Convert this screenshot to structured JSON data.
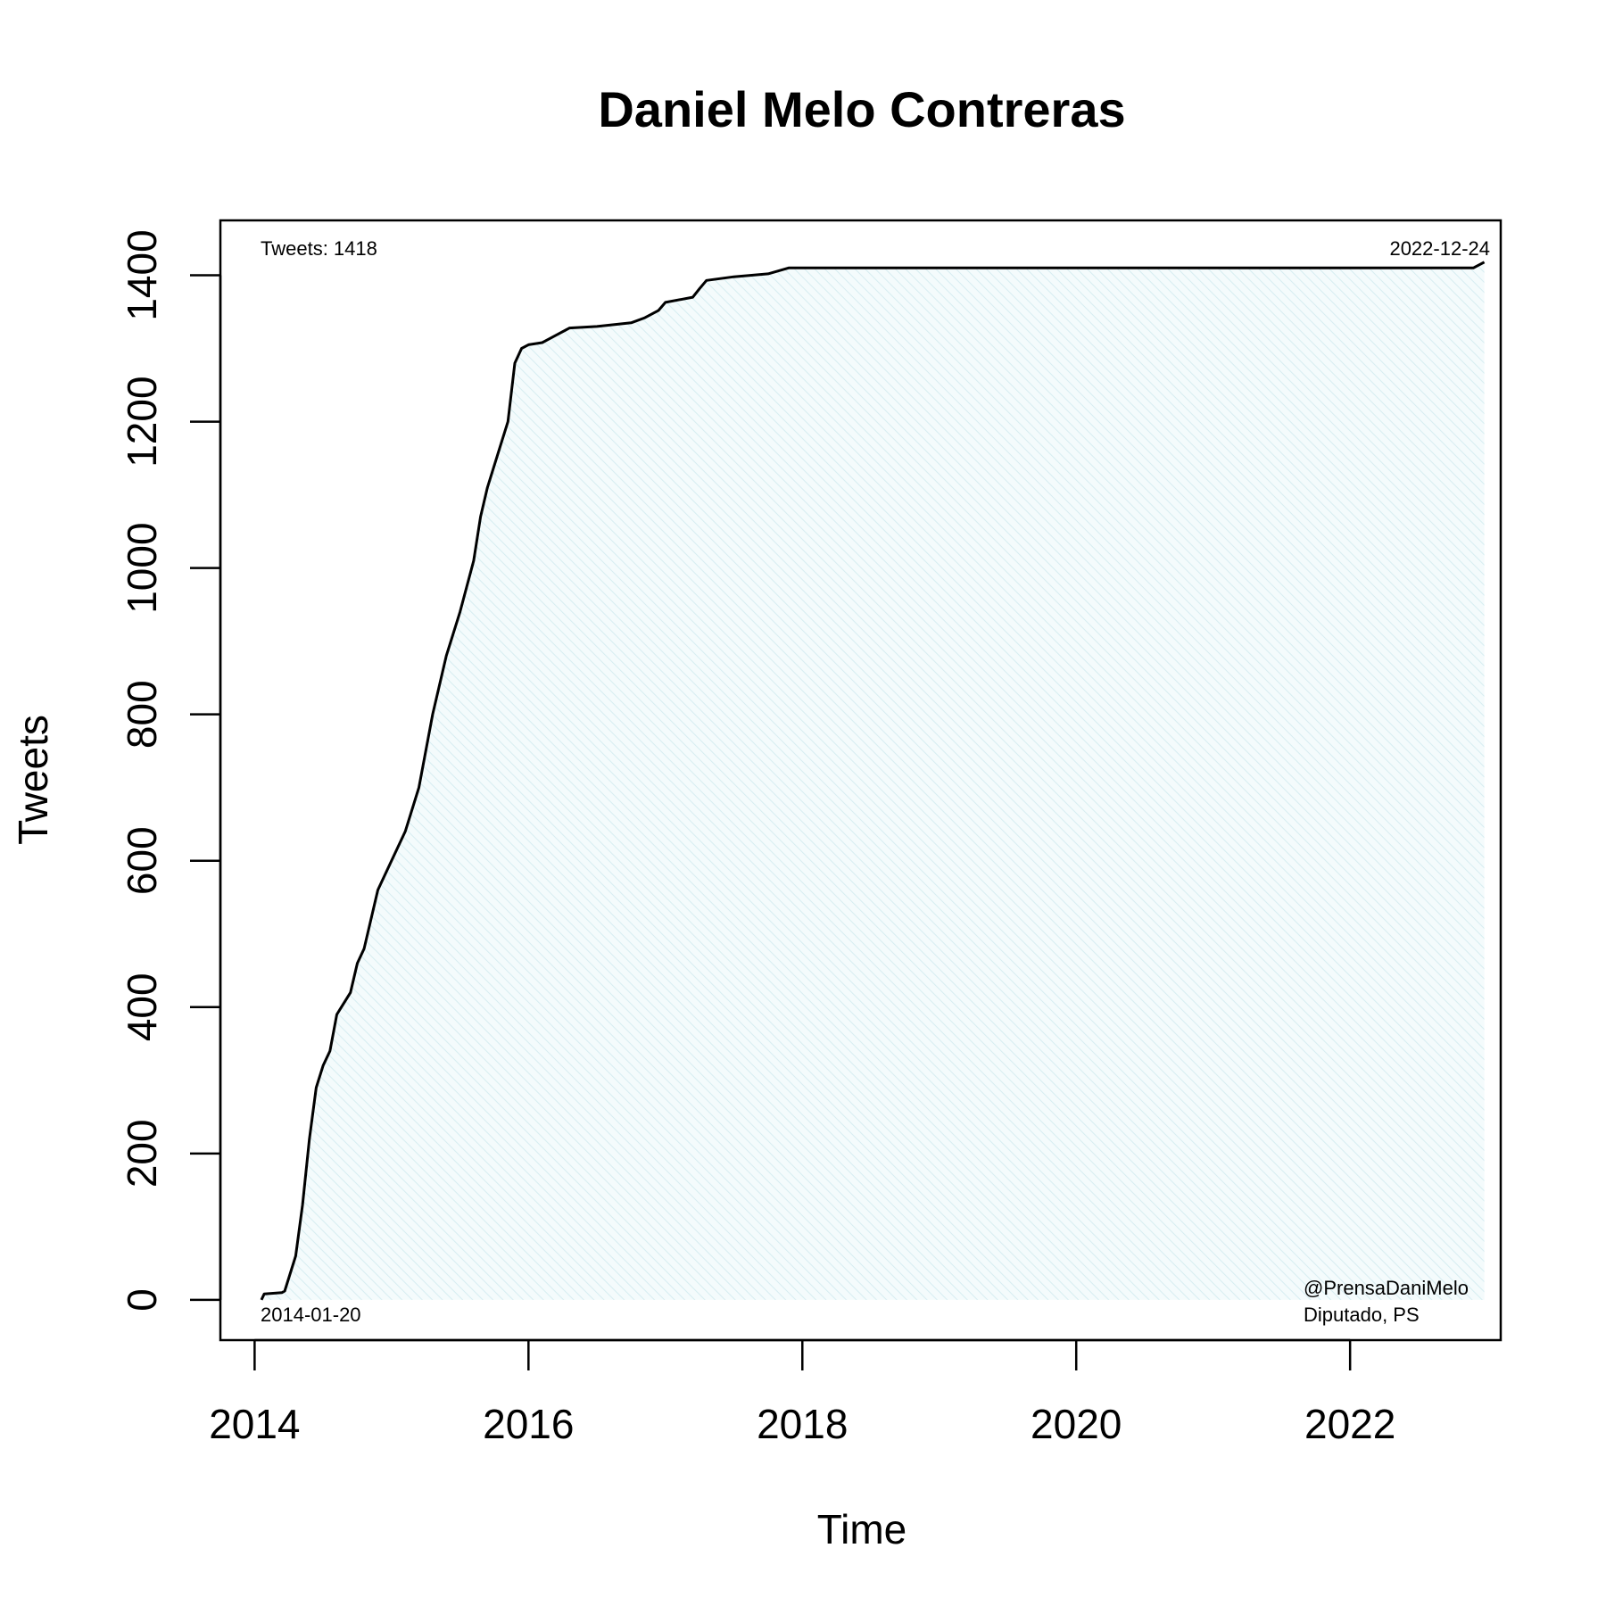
{
  "chart_data": {
    "type": "line",
    "title": "Daniel Melo Contreras",
    "xlabel": "Time",
    "ylabel": "Tweets",
    "xlim": [
      2013.75,
      2023.1
    ],
    "ylim": [
      -55,
      1475
    ],
    "x_ticks": [
      2014,
      2016,
      2018,
      2020,
      2022
    ],
    "x_tick_labels": [
      "2014",
      "2016",
      "2018",
      "2020",
      "2022"
    ],
    "y_ticks": [
      0,
      200,
      400,
      600,
      800,
      1000,
      1200,
      1400
    ],
    "y_tick_labels": [
      "0",
      "200",
      "400",
      "600",
      "800",
      "1000",
      "1200",
      "1400"
    ],
    "grid": false,
    "fill": "hatched area under curve (light blue)",
    "annotations": {
      "top_left": "Tweets: 1418",
      "top_right": "2022-12-24",
      "bottom_left": "2014-01-20",
      "bottom_right_line1": "@PrensaDaniMelo",
      "bottom_right_line2": "Diputado, PS"
    },
    "series": [
      {
        "x": [
          2014.05,
          2014.07,
          2014.2,
          2014.22,
          2014.3,
          2014.35,
          2014.4,
          2014.45,
          2014.5,
          2014.55,
          2014.6,
          2014.7,
          2014.75,
          2014.8,
          2014.9,
          2015.0,
          2015.1,
          2015.2,
          2015.3,
          2015.4,
          2015.5,
          2015.6,
          2015.65,
          2015.7,
          2015.8,
          2015.85,
          2015.9,
          2015.95,
          2016.0,
          2016.1,
          2016.2,
          2016.3,
          2016.5,
          2016.75,
          2016.85,
          2016.95,
          2017.0,
          2017.2,
          2017.25,
          2017.3,
          2017.5,
          2017.75,
          2017.9,
          2018.5,
          2020.0,
          2021.5,
          2022.9,
          2022.98
        ],
        "y": [
          0,
          8,
          10,
          12,
          60,
          130,
          220,
          290,
          320,
          340,
          390,
          420,
          460,
          480,
          560,
          600,
          640,
          700,
          800,
          880,
          940,
          1010,
          1070,
          1110,
          1170,
          1200,
          1280,
          1300,
          1305,
          1308,
          1318,
          1328,
          1330,
          1335,
          1342,
          1352,
          1363,
          1370,
          1382,
          1393,
          1398,
          1402,
          1410,
          1410,
          1410,
          1410,
          1410,
          1418
        ]
      }
    ]
  }
}
